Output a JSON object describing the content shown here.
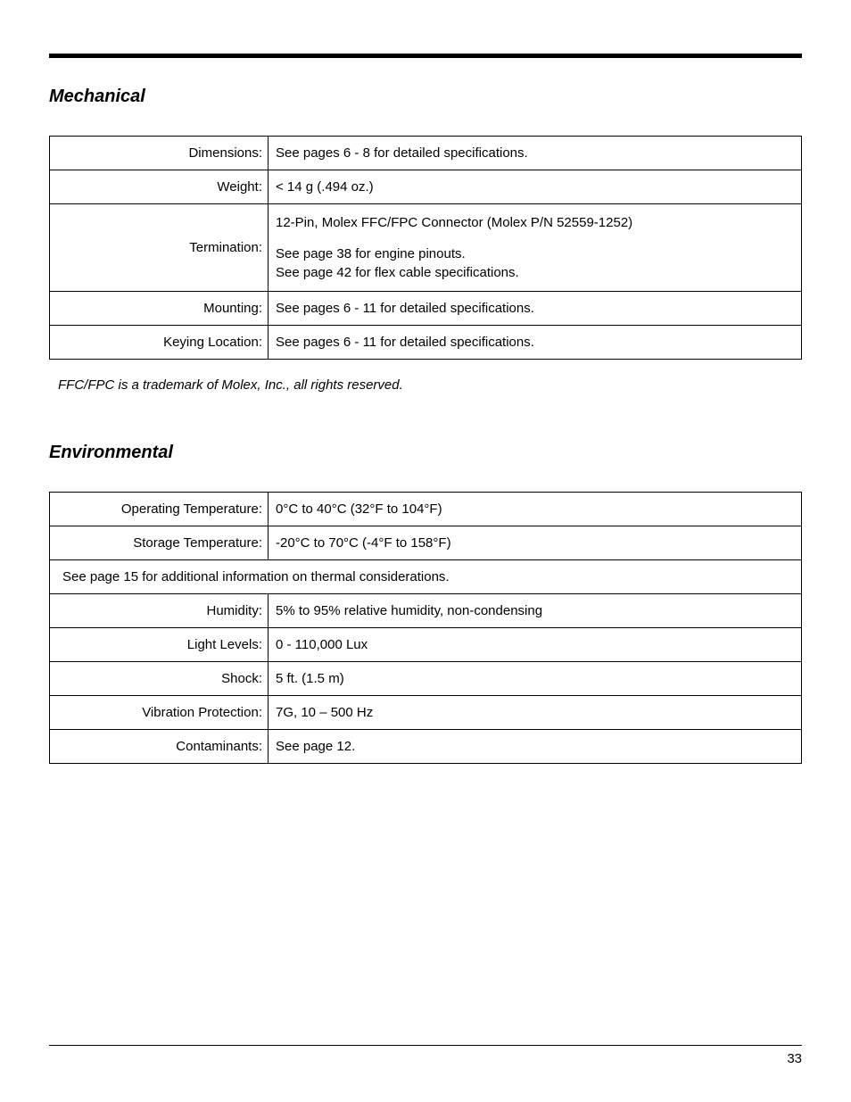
{
  "page_number": "33",
  "sections": {
    "mechanical": {
      "title": "Mechanical",
      "rows": {
        "dimensions": {
          "label": "Dimensions:",
          "value": "See pages 6 - 8 for detailed specifications."
        },
        "weight": {
          "label": "Weight:",
          "value": "< 14 g (.494 oz.)"
        },
        "termination": {
          "label": "Termination:",
          "line1": "12-Pin, Molex FFC/FPC Connector (Molex P/N 52559-1252)",
          "line2": "See page 38 for engine pinouts.",
          "line3": "See page 42 for flex cable specifications."
        },
        "mounting": {
          "label": "Mounting:",
          "value": "See pages 6 - 11 for detailed specifications."
        },
        "keying": {
          "label": "Keying Location:",
          "value": "See pages 6 - 11 for detailed specifications."
        }
      },
      "footnote": "FFC/FPC is a trademark of Molex, Inc., all rights reserved."
    },
    "environmental": {
      "title": "Environmental",
      "rows": {
        "op_temp": {
          "label": "Operating Temperature:",
          "value": "0°C to 40°C (32°F to 104°F)"
        },
        "storage_temp": {
          "label": "Storage Temperature:",
          "value": "-20°C to 70°C (-4°F to 158°F)"
        },
        "thermal_note": "See page 15 for additional information on thermal considerations.",
        "humidity": {
          "label": "Humidity:",
          "value": "5% to 95% relative humidity, non-condensing"
        },
        "light": {
          "label": "Light Levels:",
          "value": "0 - 110,000 Lux"
        },
        "shock": {
          "label": "Shock:",
          "value": "5 ft. (1.5 m)"
        },
        "vibration": {
          "label": "Vibration Protection:",
          "value": "7G, 10 – 500 Hz"
        },
        "contaminants": {
          "label": "Contaminants:",
          "value": "See page 12."
        }
      }
    }
  }
}
